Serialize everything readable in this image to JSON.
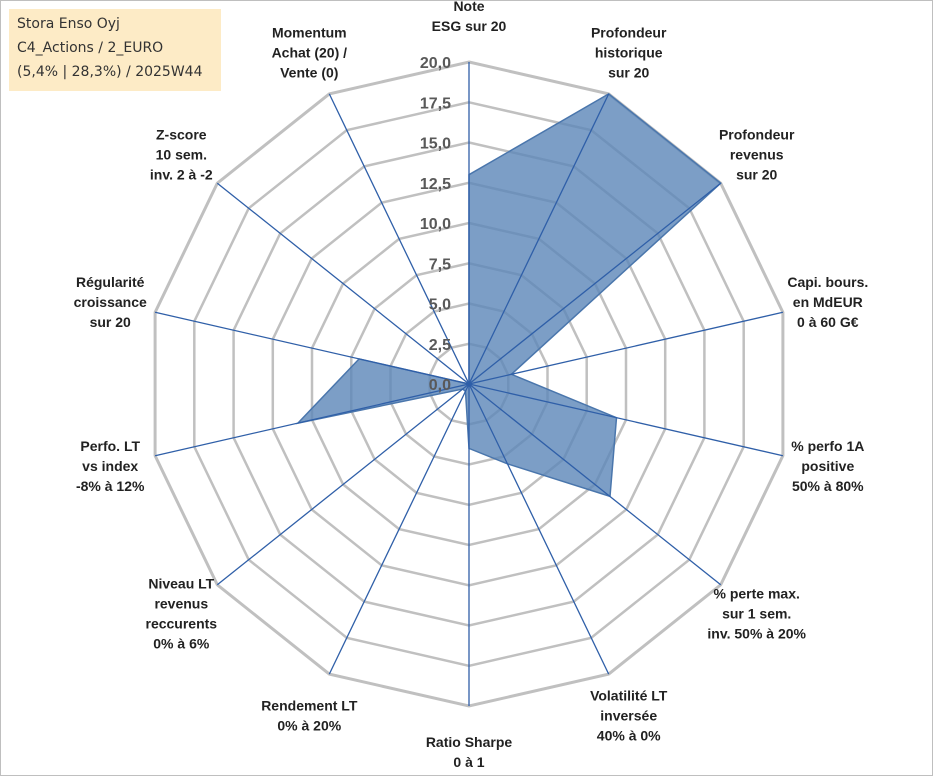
{
  "title_box": {
    "line1": "Stora Enso Oyj",
    "line2": "C4_Actions / 2_EURO",
    "line3": "(5,4% | 28,3%) / 2025W44"
  },
  "colors": {
    "grid": "#c0c0c0",
    "spoke": "#2f5fa8",
    "fill": "#5b86b8",
    "stroke": "#4a76ac"
  },
  "chart_data": {
    "type": "radar",
    "range": [
      0,
      20
    ],
    "tick_step": 2.5,
    "tick_labels": [
      "0,0",
      "2,5",
      "5,0",
      "7,5",
      "10,0",
      "12,5",
      "15,0",
      "17,5",
      "20,0"
    ],
    "axes": [
      {
        "lines": [
          "Note",
          "ESG sur 20"
        ],
        "value": 13.0
      },
      {
        "lines": [
          "Profondeur",
          "historique",
          "sur 20"
        ],
        "value": 20.0
      },
      {
        "lines": [
          "Profondeur",
          "revenus",
          "sur 20"
        ],
        "value": 20.0
      },
      {
        "lines": [
          "Capi. bours.",
          "en MdEUR",
          "0 à 60 G€"
        ],
        "value": 2.7
      },
      {
        "lines": [
          "% perfo 1A",
          "positive",
          "50% à 80%"
        ],
        "value": 9.4
      },
      {
        "lines": [
          "% perte max.",
          "sur 1 sem.",
          "inv. 50% à 20%"
        ],
        "value": 11.2
      },
      {
        "lines": [
          "Volatilité LT",
          "inversée",
          "40% à 0%"
        ],
        "value": 5.5
      },
      {
        "lines": [
          "Ratio Sharpe",
          "0 à 1"
        ],
        "value": 4.0
      },
      {
        "lines": [
          "Rendement LT",
          "0% à 20%"
        ],
        "value": 0.5
      },
      {
        "lines": [
          "Niveau LT",
          "revenus",
          "reccurents",
          "0% à 6%"
        ],
        "value": 0.5
      },
      {
        "lines": [
          "Perfo. LT",
          "vs index",
          "-8% à 12%"
        ],
        "value": 10.9
      },
      {
        "lines": [
          "Régularité",
          "croissance",
          "sur 20"
        ],
        "value": 7.0
      },
      {
        "lines": [
          "Z-score",
          "10 sem.",
          "inv. 2 à -2"
        ],
        "value": 0.0
      },
      {
        "lines": [
          "Momentum",
          "Achat (20) /",
          "Vente (0)"
        ],
        "value": 0.0
      }
    ]
  }
}
